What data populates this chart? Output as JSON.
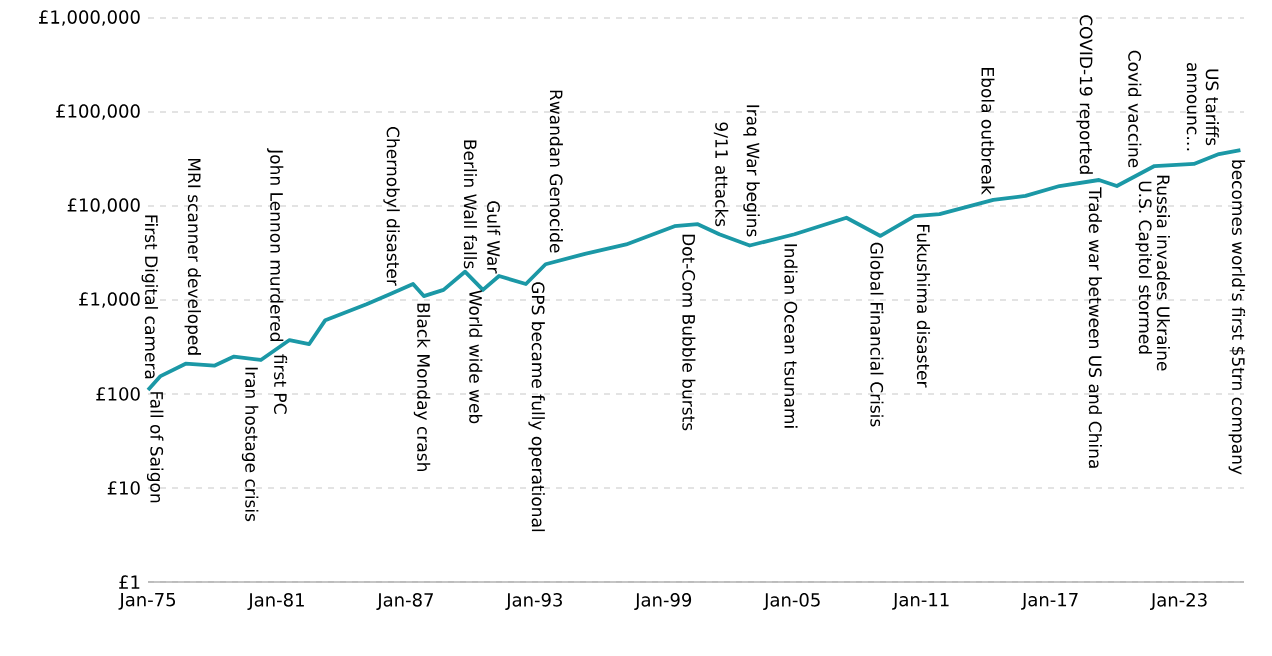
{
  "chart_data": {
    "type": "line",
    "log": true,
    "grid": "y",
    "x": [
      "1975-01",
      "1975-08",
      "1976-10",
      "1978-02",
      "1979-01",
      "1980-04",
      "1981-08",
      "1982-07",
      "1983-04",
      "1985-03",
      "1986-04",
      "1987-05",
      "1987-11",
      "1988-10",
      "1989-10",
      "1990-08",
      "1991-05",
      "1992-08",
      "1993-07",
      "1995-05",
      "1997-04",
      "1999-07",
      "2000-08",
      "2001-08",
      "2003-01",
      "2005-02",
      "2007-07",
      "2009-02",
      "2010-09",
      "2011-11",
      "2014-05",
      "2015-11",
      "2017-06",
      "2019-04",
      "2020-02",
      "2021-11",
      "2023-09",
      "2024-11",
      "2025-11"
    ],
    "series": [
      {
        "color": "#1b98a6",
        "values": [
          110,
          155,
          210,
          200,
          250,
          230,
          375,
          340,
          610,
          900,
          1150,
          1480,
          1100,
          1280,
          2000,
          1280,
          1800,
          1480,
          2400,
          3100,
          3900,
          6100,
          6400,
          5000,
          3800,
          5000,
          7500,
          4800,
          7800,
          8200,
          11600,
          12800,
          16300,
          18900,
          16300,
          26600,
          28000,
          35700,
          39400
        ]
      }
    ],
    "xlim": [
      "1975-01",
      "2026-01"
    ],
    "xticks": [
      {
        "value": "1975-01",
        "label": "Jan-75"
      },
      {
        "value": "1981-01",
        "label": "Jan-81"
      },
      {
        "value": "1987-01",
        "label": "Jan-87"
      },
      {
        "value": "1993-01",
        "label": "Jan-93"
      },
      {
        "value": "1999-01",
        "label": "Jan-99"
      },
      {
        "value": "2005-01",
        "label": "Jan-05"
      },
      {
        "value": "2011-01",
        "label": "Jan-11"
      },
      {
        "value": "2017-01",
        "label": "Jan-17"
      },
      {
        "value": "2023-01",
        "label": "Jan-23"
      }
    ],
    "ylim": [
      1,
      1000000
    ],
    "yticks": [
      {
        "value": 1,
        "label": "£1"
      },
      {
        "value": 10,
        "label": "£10"
      },
      {
        "value": 100,
        "label": "£100"
      },
      {
        "value": 1000,
        "label": "£1,000"
      },
      {
        "value": 10000,
        "label": "£10,000"
      },
      {
        "value": 100000,
        "label": "£100,000"
      },
      {
        "value": 1000000,
        "label": "£1,000,000"
      }
    ],
    "annotations": [
      {
        "text": "Fall of Saigon",
        "x": "1975-05",
        "y": 110
      },
      {
        "text": "First Digital camera",
        "x": "1975-02",
        "y": 140
      },
      {
        "text": "MRI scanner developed",
        "x": "1977-02",
        "y": 250
      },
      {
        "text": "John Lennon murdered",
        "x": "1980-12",
        "y": 350
      },
      {
        "text": "Iran hostage crisis",
        "x": "1979-10",
        "y": 200
      },
      {
        "text": "first PC",
        "x": "1981-03",
        "y": 270
      },
      {
        "text": "Chernobyl disaster",
        "x": "1986-05",
        "y": 1400
      },
      {
        "text": "Black Monday crash",
        "x": "1987-10",
        "y": 960
      },
      {
        "text": "Berlin Wall falls",
        "x": "1990-01",
        "y": 2100
      },
      {
        "text": "Gulf War",
        "x": "1991-02",
        "y": 1900
      },
      {
        "text": "World wide web",
        "x": "1990-04",
        "y": 1300
      },
      {
        "text": "GPS became fully operational",
        "x": "1993-02",
        "y": 1600
      },
      {
        "text": "Rwandan Genocide",
        "x": "1994-01",
        "y": 3100
      },
      {
        "text": "Dot-Com Bubble bursts",
        "x": "2000-03",
        "y": 5200
      },
      {
        "text": "9/11 attacks",
        "x": "2001-09",
        "y": 5900
      },
      {
        "text": "Iraq War begins",
        "x": "2003-02",
        "y": 4600
      },
      {
        "text": "Indian Ocean tsunami",
        "x": "2004-12",
        "y": 4100
      },
      {
        "text": "Global Financial Crisis",
        "x": "2008-12",
        "y": 4200
      },
      {
        "text": "Fukushima disaster",
        "x": "2011-02",
        "y": 6600
      },
      {
        "text": "Ebola outbreak",
        "x": "2014-02",
        "y": 13000
      },
      {
        "text": "COVID-19 reported",
        "x": "2018-08",
        "y": 21000
      },
      {
        "text": "Trade war between US and China",
        "x": "2019-02",
        "y": 16000
      },
      {
        "text": "Covid vaccine",
        "x": "2020-12",
        "y": 25000
      },
      {
        "text": "U.S. Capitol stormed",
        "x": "2021-05",
        "y": 19000
      },
      {
        "text": "Russia invades Ukraine",
        "x": "2022-04",
        "y": 22000
      },
      {
        "text": "US tariffs announc…",
        "x": "2024-02",
        "y": 37000
      },
      {
        "text": "becomes world's first $5trn company",
        "x": "2025-09",
        "y": 32000
      }
    ]
  }
}
